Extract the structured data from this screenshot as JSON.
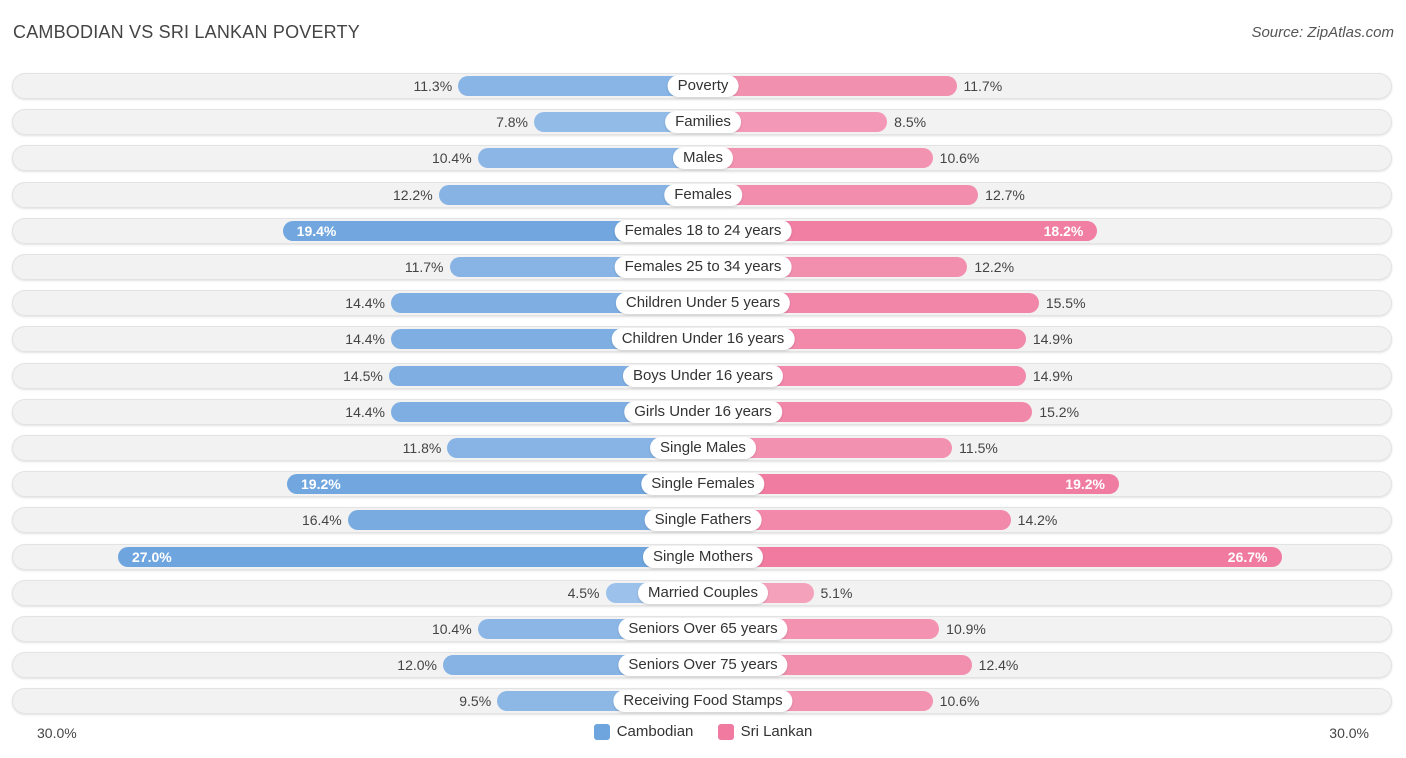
{
  "header": {
    "title": "CAMBODIAN VS SRI LANKAN POVERTY",
    "source": "Source: ZipAtlas.com"
  },
  "colors": {
    "cambodian": "#6fa5de",
    "cambodian_light": "#a9c9ee",
    "sri_lankan": "#f07aa0",
    "sri_lankan_light": "#f6afc6"
  },
  "chart_data": {
    "type": "bar",
    "title": "CAMBODIAN VS SRI LANKAN POVERTY",
    "orientation": "horizontal-diverging",
    "unit": "%",
    "xlim": [
      0,
      30
    ],
    "axis_labels": {
      "left": "30.0%",
      "right": "30.0%"
    },
    "legend": [
      "Cambodian",
      "Sri Lankan"
    ],
    "legend_position": "bottom-center",
    "categories": [
      "Poverty",
      "Families",
      "Males",
      "Females",
      "Females 18 to 24 years",
      "Females 25 to 34 years",
      "Children Under 5 years",
      "Children Under 16 years",
      "Boys Under 16 years",
      "Girls Under 16 years",
      "Single Males",
      "Single Females",
      "Single Fathers",
      "Single Mothers",
      "Married Couples",
      "Seniors Over 65 years",
      "Seniors Over 75 years",
      "Receiving Food Stamps"
    ],
    "series": [
      {
        "name": "Cambodian",
        "values": [
          11.3,
          7.8,
          10.4,
          12.2,
          19.4,
          11.7,
          14.4,
          14.4,
          14.5,
          14.4,
          11.8,
          19.2,
          16.4,
          27.0,
          4.5,
          10.4,
          12.0,
          9.5
        ],
        "labels": [
          "11.3%",
          "7.8%",
          "10.4%",
          "12.2%",
          "19.4%",
          "11.7%",
          "14.4%",
          "14.4%",
          "14.5%",
          "14.4%",
          "11.8%",
          "19.2%",
          "16.4%",
          "27.0%",
          "4.5%",
          "10.4%",
          "12.0%",
          "9.5%"
        ]
      },
      {
        "name": "Sri Lankan",
        "values": [
          11.7,
          8.5,
          10.6,
          12.7,
          18.2,
          12.2,
          15.5,
          14.9,
          14.9,
          15.2,
          11.5,
          19.2,
          14.2,
          26.7,
          5.1,
          10.9,
          12.4,
          10.6
        ],
        "labels": [
          "11.7%",
          "8.5%",
          "10.6%",
          "12.7%",
          "18.2%",
          "12.2%",
          "15.5%",
          "14.9%",
          "14.9%",
          "15.2%",
          "11.5%",
          "19.2%",
          "14.2%",
          "26.7%",
          "5.1%",
          "10.9%",
          "12.4%",
          "10.6%"
        ]
      }
    ]
  }
}
